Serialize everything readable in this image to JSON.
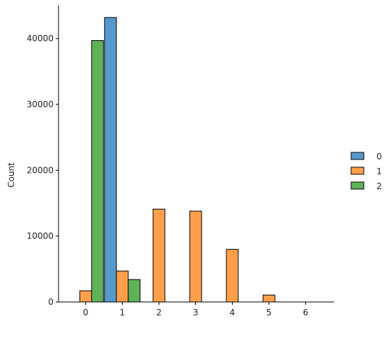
{
  "chart_data": {
    "type": "bar",
    "title": "",
    "xlabel": "",
    "ylabel": "Count",
    "categories": [
      "0",
      "1",
      "2",
      "3",
      "4",
      "5",
      "6"
    ],
    "ylim": [
      0,
      45000
    ],
    "yticks": [
      0,
      10000,
      20000,
      30000,
      40000
    ],
    "grid": false,
    "legend_position": "right",
    "series": [
      {
        "name": "0",
        "color": "#5599cc",
        "values": [
          0,
          43200,
          0,
          0,
          0,
          0,
          0
        ]
      },
      {
        "name": "1",
        "color": "#ff9f4a",
        "values": [
          1700,
          4700,
          14100,
          13800,
          8000,
          1050,
          0
        ]
      },
      {
        "name": "2",
        "color": "#60b158",
        "values": [
          39700,
          3400,
          0,
          0,
          0,
          0,
          0
        ]
      }
    ]
  }
}
